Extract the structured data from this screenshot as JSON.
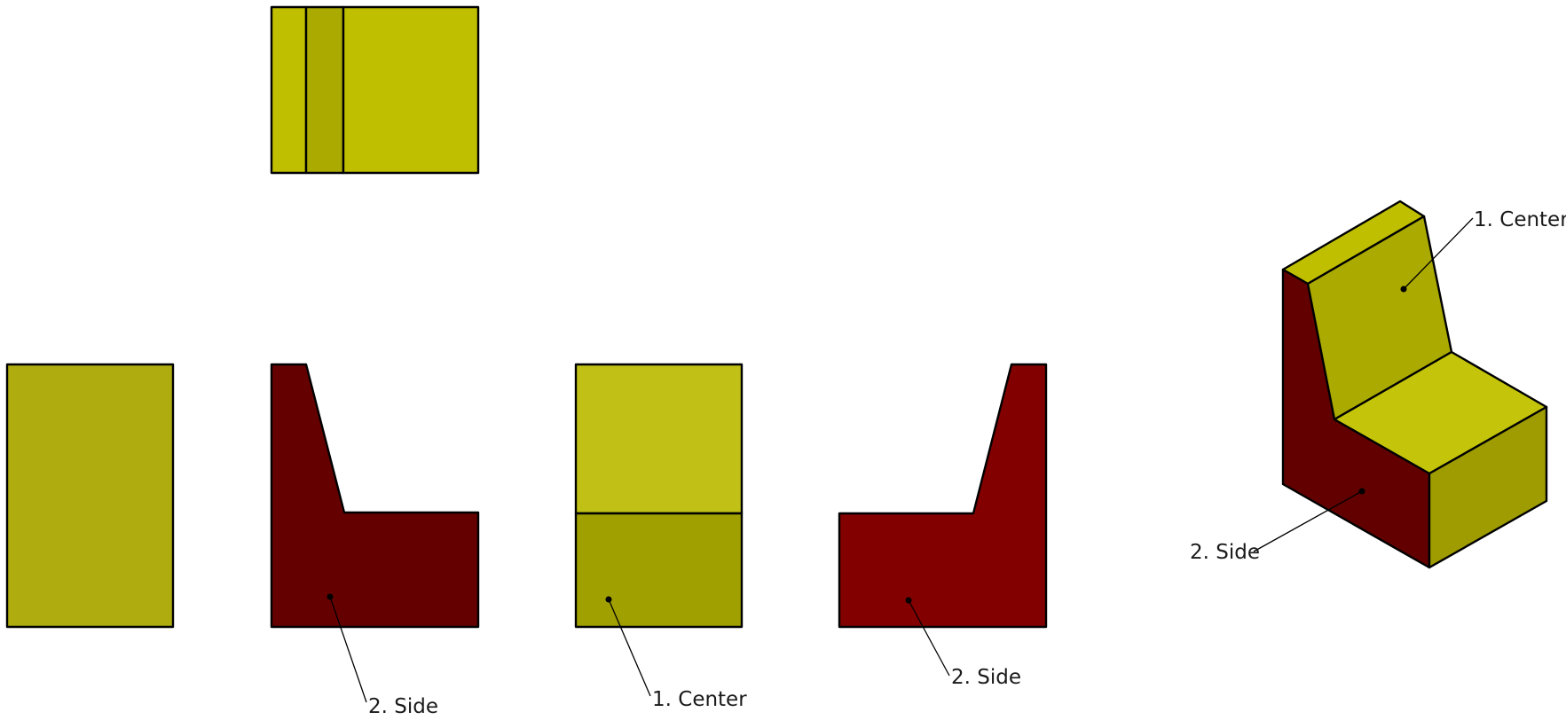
{
  "colors": {
    "center_light": "#BFBF00",
    "center_mid": "#AAAA00",
    "center_front": "#AFAC10",
    "center_top": "#C0C016",
    "center_bottom": "#A0A000",
    "iso_seat_top": "#C4C50A",
    "iso_front_face": "#9E9C00",
    "side_dark": "#650000",
    "side_red": "#820000",
    "iso_side": "#620000",
    "outline": "#000000"
  },
  "callouts": {
    "side_view_left": "2. Side",
    "front_view": "1. Center",
    "side_view_right": "2. Side",
    "iso_center": "1. Center",
    "iso_side": "2. Side"
  }
}
